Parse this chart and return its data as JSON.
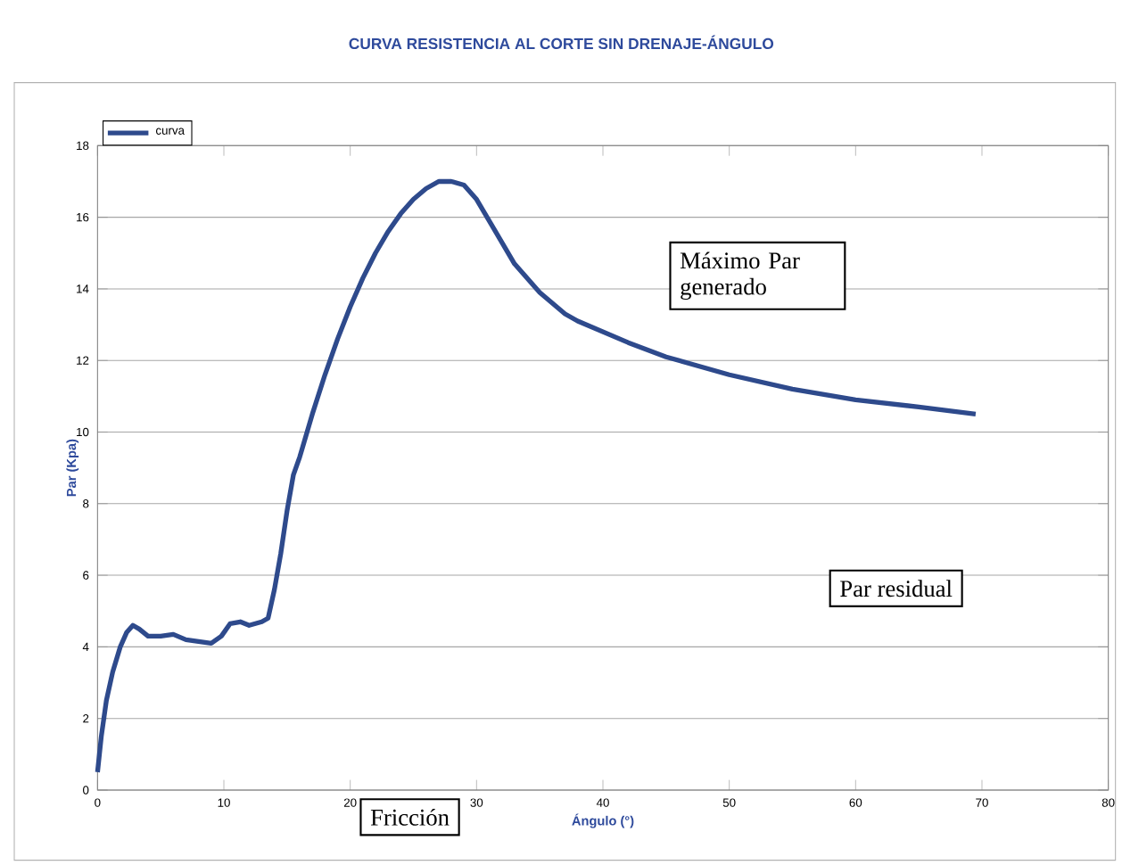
{
  "chart_data": {
    "type": "line",
    "title": "CURVA RESISTENCIA AL CORTE SIN DRENAJE-ÁNGULO",
    "xlabel": "Ángulo (°)",
    "ylabel": "Par (Kpa)",
    "xlim": [
      0,
      80
    ],
    "xticks": [
      0,
      10,
      20,
      30,
      40,
      50,
      60,
      70,
      80
    ],
    "ylim": [
      0,
      18
    ],
    "yticks": [
      0,
      2,
      4,
      6,
      8,
      10,
      12,
      14,
      16,
      18
    ],
    "grid": "y",
    "legend": "top left",
    "annotations": [
      "Máximo Par generado",
      "Par residual",
      "Fricción"
    ],
    "series": [
      {
        "name": "curva",
        "color": "#2e4a8c",
        "x": [
          0,
          0.3,
          0.7,
          1.2,
          1.8,
          2.3,
          2.8,
          3.3,
          4,
          5,
          6,
          7,
          8,
          9,
          9.8,
          10.5,
          11.3,
          12,
          13,
          13.5,
          14,
          14.5,
          15,
          15.5,
          16,
          17,
          18,
          19,
          20,
          21,
          22,
          23,
          24,
          25,
          26,
          27,
          28,
          29,
          30,
          31,
          32,
          33,
          34,
          35,
          36,
          37,
          38,
          40,
          42,
          45,
          50,
          55,
          60,
          65,
          69.5
        ],
        "values": [
          0.5,
          1.5,
          2.5,
          3.3,
          4.0,
          4.4,
          4.6,
          4.5,
          4.3,
          4.3,
          4.35,
          4.2,
          4.15,
          4.1,
          4.3,
          4.65,
          4.7,
          4.6,
          4.7,
          4.8,
          5.6,
          6.6,
          7.8,
          8.8,
          9.3,
          10.5,
          11.6,
          12.6,
          13.5,
          14.3,
          15,
          15.6,
          16.1,
          16.5,
          16.8,
          17.0,
          17.0,
          16.9,
          16.5,
          15.9,
          15.3,
          14.7,
          14.3,
          13.9,
          13.6,
          13.3,
          13.1,
          12.8,
          12.5,
          12.1,
          11.6,
          11.2,
          10.9,
          10.7,
          10.5
        ]
      }
    ]
  }
}
